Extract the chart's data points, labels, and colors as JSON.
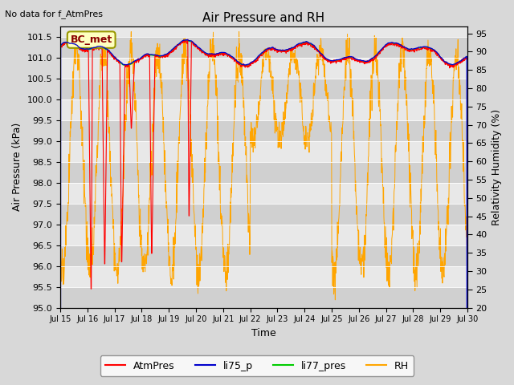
{
  "title": "Air Pressure and RH",
  "top_left_note": "No data for f_AtmPres",
  "watermark": "BC_met",
  "xlabel": "Time",
  "ylabel_left": "Air Pressure (kPa)",
  "ylabel_right": "Relativity Humidity (%)",
  "ylim_left": [
    95.0,
    101.75
  ],
  "ylim_right": [
    20,
    97
  ],
  "yticks_left": [
    95.0,
    95.5,
    96.0,
    96.5,
    97.0,
    97.5,
    98.0,
    98.5,
    99.0,
    99.5,
    100.0,
    100.5,
    101.0,
    101.5
  ],
  "yticks_right": [
    20,
    25,
    30,
    35,
    40,
    45,
    50,
    55,
    60,
    65,
    70,
    75,
    80,
    85,
    90,
    95
  ],
  "xtick_labels": [
    "Jul 15",
    "Jul 16",
    "Jul 17",
    "Jul 18",
    "Jul 19",
    "Jul 20",
    "Jul 21",
    "Jul 22",
    "Jul 23",
    "Jul 24",
    "Jul 25",
    "Jul 26",
    "Jul 27",
    "Jul 28",
    "Jul 29",
    "Jul 30"
  ],
  "line_colors": {
    "AtmPres": "#ff0000",
    "li75_p": "#0000cc",
    "li77_pres": "#00cc00",
    "RH": "#ffa500"
  },
  "bg_color": "#d8d8d8",
  "plot_bg_light": "#e8e8e8",
  "plot_bg_dark": "#d0d0d0",
  "n_days": 15,
  "points_per_day": 96,
  "rh_min": 20,
  "rh_max": 97,
  "p_min": 95.0,
  "p_max": 101.75
}
